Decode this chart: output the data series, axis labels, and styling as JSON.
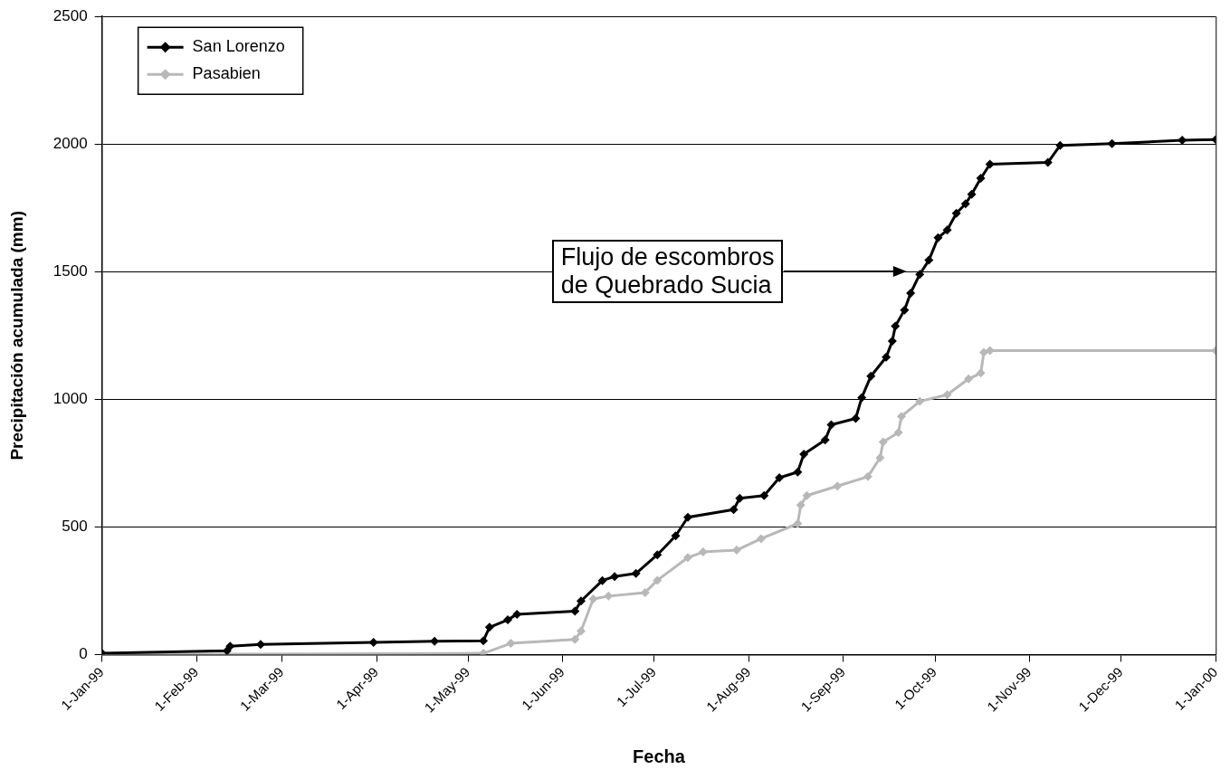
{
  "chart_data": {
    "type": "line",
    "xlabel": "Fecha",
    "ylabel": "Precipitación acumulada (mm)",
    "xlim": [
      "1999-01-01",
      "2000-01-01"
    ],
    "xticks": [
      {
        "value": "1999-01-01",
        "label": "1-Jan-99"
      },
      {
        "value": "1999-02-01",
        "label": "1-Feb-99"
      },
      {
        "value": "1999-03-01",
        "label": "1-Mar-99"
      },
      {
        "value": "1999-04-01",
        "label": "1-Apr-99"
      },
      {
        "value": "1999-05-01",
        "label": "1-May-99"
      },
      {
        "value": "1999-06-01",
        "label": "1-Jun-99"
      },
      {
        "value": "1999-07-01",
        "label": "1-Jul-99"
      },
      {
        "value": "1999-08-01",
        "label": "1-Aug-99"
      },
      {
        "value": "1999-09-01",
        "label": "1-Sep-99"
      },
      {
        "value": "1999-10-01",
        "label": "1-Oct-99"
      },
      {
        "value": "1999-11-01",
        "label": "1-Nov-99"
      },
      {
        "value": "1999-12-01",
        "label": "1-Dec-99"
      },
      {
        "value": "2000-01-01",
        "label": "1-Jan-00"
      }
    ],
    "ylim": [
      0,
      2500
    ],
    "yticks": [
      0,
      500,
      1000,
      1500,
      2000,
      2500
    ],
    "grid": "y",
    "legend": "top left",
    "marker": "diamond",
    "line_style": "solid",
    "annotations": [
      "Flujo de escombros\nde Quebrado Sucia"
    ],
    "series": [
      {
        "name": "San Lorenzo",
        "color": "#000000",
        "x": [
          "1999-01-01",
          "1999-02-11",
          "1999-02-12",
          "1999-02-22",
          "1999-03-31",
          "1999-04-20",
          "1999-05-06",
          "1999-05-08",
          "1999-05-14",
          "1999-05-17",
          "1999-06-05",
          "1999-06-07",
          "1999-06-14",
          "1999-06-18",
          "1999-06-25",
          "1999-07-02",
          "1999-07-08",
          "1999-07-12",
          "1999-07-27",
          "1999-07-29",
          "1999-08-06",
          "1999-08-11",
          "1999-08-17",
          "1999-08-19",
          "1999-08-26",
          "1999-08-28",
          "1999-09-05",
          "1999-09-07",
          "1999-09-10",
          "1999-09-15",
          "1999-09-17",
          "1999-09-18",
          "1999-09-21",
          "1999-09-23",
          "1999-09-26",
          "1999-09-29",
          "1999-10-02",
          "1999-10-05",
          "1999-10-08",
          "1999-10-11",
          "1999-10-13",
          "1999-10-16",
          "1999-10-19",
          "1999-11-07",
          "1999-11-11",
          "1999-11-28",
          "1999-12-21",
          "2000-01-01"
        ],
        "values": [
          5,
          15,
          33,
          40,
          48,
          52,
          54,
          107,
          136,
          158,
          170,
          210,
          290,
          306,
          318,
          391,
          465,
          538,
          568,
          612,
          623,
          693,
          715,
          785,
          841,
          900,
          925,
          1007,
          1091,
          1165,
          1228,
          1287,
          1350,
          1416,
          1490,
          1545,
          1633,
          1663,
          1729,
          1766,
          1803,
          1866,
          1921,
          1928,
          1995,
          2002,
          2015,
          2018
        ]
      },
      {
        "name": "Pasabien",
        "color": "#b8b8b8",
        "x": [
          "1999-01-01",
          "1999-05-06",
          "1999-05-15",
          "1999-06-05",
          "1999-06-07",
          "1999-06-11",
          "1999-06-16",
          "1999-06-28",
          "1999-07-02",
          "1999-07-12",
          "1999-07-17",
          "1999-07-28",
          "1999-08-05",
          "1999-08-17",
          "1999-08-18",
          "1999-08-20",
          "1999-08-30",
          "1999-09-09",
          "1999-09-13",
          "1999-09-14",
          "1999-09-19",
          "1999-09-20",
          "1999-09-26",
          "1999-10-05",
          "1999-10-12",
          "1999-10-16",
          "1999-10-17",
          "1999-10-19",
          "2000-01-01"
        ],
        "values": [
          0,
          5,
          44,
          59,
          92,
          218,
          229,
          243,
          291,
          380,
          402,
          409,
          454,
          513,
          586,
          623,
          660,
          697,
          771,
          833,
          870,
          933,
          992,
          1018,
          1080,
          1103,
          1184,
          1191,
          1191
        ]
      }
    ]
  }
}
